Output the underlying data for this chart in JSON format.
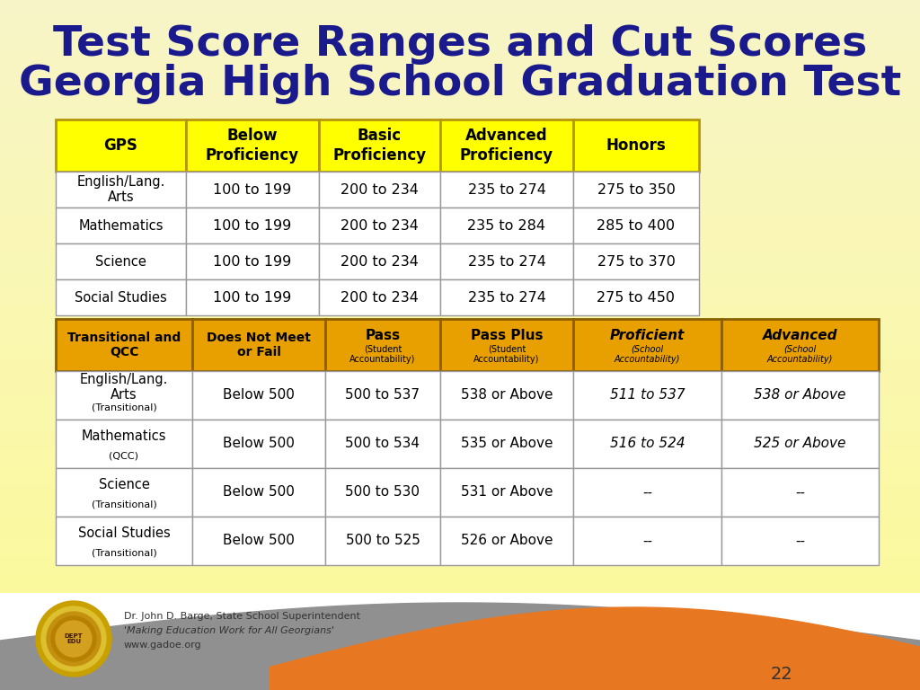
{
  "title_line1": "Test Score Ranges and Cut Scores",
  "title_line2": "Georgia High School Graduation Test",
  "title_color": "#1a1a8c",
  "bg_color": "#f5f0c0",
  "yellow_color": "#ffff00",
  "orange_color": "#e8a000",
  "orange_wave": "#e87722",
  "gray_color": "#909090",
  "border_yellow": "#b8960c",
  "border_orange": "#8B6000",
  "table1_header": [
    "GPS",
    "Below\nProficiency",
    "Basic\nProficiency",
    "Advanced\nProficiency",
    "Honors"
  ],
  "table1_rows": [
    [
      "English/Lang.\nArts",
      "100 to 199",
      "200 to 234",
      "235 to 274",
      "275 to 350"
    ],
    [
      "Mathematics",
      "100 to 199",
      "200 to 234",
      "235 to 284",
      "285 to 400"
    ],
    [
      "Science",
      "100 to 199",
      "200 to 234",
      "235 to 274",
      "275 to 370"
    ],
    [
      "Social Studies",
      "100 to 199",
      "200 to 234",
      "235 to 274",
      "275 to 450"
    ]
  ],
  "table2_rows_data": [
    [
      "English/Lang.\nArts",
      "(Transitional)",
      "Below 500",
      "500 to 537",
      "538 or Above",
      "511 to 537",
      "538 or Above"
    ],
    [
      "Mathematics",
      "(QCC)",
      "Below 500",
      "500 to 534",
      "535 or Above",
      "516 to 524",
      "525 or Above"
    ],
    [
      "Science",
      "(Transitional)",
      "Below 500",
      "500 to 530",
      "531 or Above",
      "--",
      "--"
    ],
    [
      "Social Studies",
      "(Transitional)",
      "Below 500",
      "500 to 525",
      "526 or Above",
      "--",
      "--"
    ]
  ],
  "footer_text1": "Dr. John D. Barge, State School Superintendent",
  "footer_text2": "'Making Education Work for All Georgians'",
  "footer_text3": "www.gadoe.org",
  "page_number": "22"
}
